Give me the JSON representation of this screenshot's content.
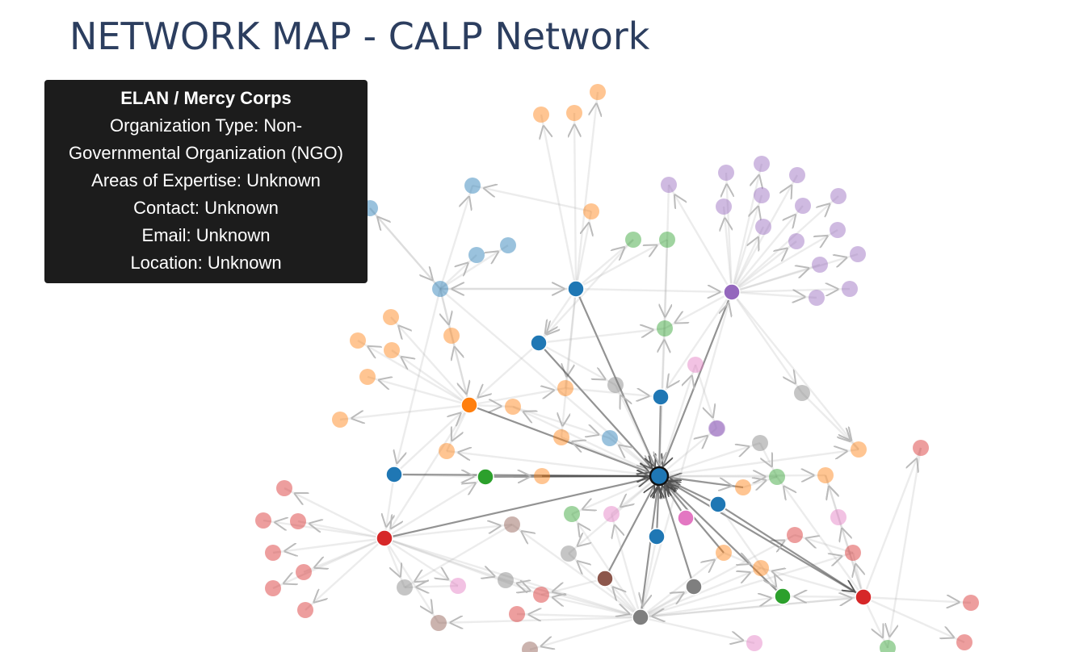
{
  "page": {
    "title": "NETWORK MAP - CALP Network"
  },
  "tooltip": {
    "title": "ELAN / Mercy Corps",
    "lines": [
      "Organization Type: Non-",
      "Governmental Organization (NGO)",
      "Areas of Expertise: Unknown",
      "Contact: Unknown",
      "Email: Unknown",
      "Location: Unknown"
    ]
  },
  "colors": {
    "blue": "#1f77b4",
    "orange": "#ff7f0e",
    "green": "#2ca02c",
    "red": "#d62728",
    "purple": "#9467bd",
    "brown": "#8c564b",
    "pink": "#e377c2",
    "gray": "#7f7f7f",
    "edge": "#999999",
    "highlight_edge": "#333333",
    "tooltip_bg": "#1c1c1c"
  },
  "graph": {
    "focus_node": "n0",
    "nodes": [
      {
        "id": "n0",
        "group": "blue",
        "strong": true,
        "focus": true
      },
      {
        "id": "n1",
        "group": "blue",
        "strong": true
      },
      {
        "id": "n2",
        "group": "blue",
        "strong": true
      },
      {
        "id": "n3",
        "group": "blue",
        "strong": true
      },
      {
        "id": "n4",
        "group": "blue",
        "strong": true
      },
      {
        "id": "n5",
        "group": "blue",
        "strong": true
      },
      {
        "id": "n6",
        "group": "blue",
        "strong": true
      },
      {
        "id": "n7",
        "group": "blue",
        "strong": false
      },
      {
        "id": "n8",
        "group": "blue",
        "strong": false
      },
      {
        "id": "n9",
        "group": "blue",
        "strong": false
      },
      {
        "id": "n10",
        "group": "blue",
        "strong": false
      },
      {
        "id": "n11",
        "group": "blue",
        "strong": false
      },
      {
        "id": "n12",
        "group": "blue",
        "strong": false
      },
      {
        "id": "n13",
        "group": "purple",
        "strong": true
      },
      {
        "id": "n14",
        "group": "purple",
        "strong": false
      },
      {
        "id": "n15",
        "group": "purple",
        "strong": false
      },
      {
        "id": "n16",
        "group": "purple",
        "strong": false
      },
      {
        "id": "n17",
        "group": "purple",
        "strong": false
      },
      {
        "id": "n18",
        "group": "purple",
        "strong": false
      },
      {
        "id": "n19",
        "group": "purple",
        "strong": false
      },
      {
        "id": "n20",
        "group": "purple",
        "strong": false
      },
      {
        "id": "n21",
        "group": "purple",
        "strong": false
      },
      {
        "id": "n22",
        "group": "purple",
        "strong": false
      },
      {
        "id": "n23",
        "group": "purple",
        "strong": false
      },
      {
        "id": "n24",
        "group": "purple",
        "strong": false
      },
      {
        "id": "n25",
        "group": "purple",
        "strong": false
      },
      {
        "id": "n26",
        "group": "purple",
        "strong": false
      },
      {
        "id": "n27",
        "group": "purple",
        "strong": false
      },
      {
        "id": "n28",
        "group": "purple",
        "strong": false
      },
      {
        "id": "n29",
        "group": "purple",
        "strong": false
      },
      {
        "id": "n30",
        "group": "purple",
        "strong": false
      },
      {
        "id": "n31",
        "group": "orange",
        "strong": true
      },
      {
        "id": "n32",
        "group": "orange",
        "strong": false
      },
      {
        "id": "n33",
        "group": "orange",
        "strong": false
      },
      {
        "id": "n34",
        "group": "orange",
        "strong": false
      },
      {
        "id": "n35",
        "group": "orange",
        "strong": false
      },
      {
        "id": "n36",
        "group": "orange",
        "strong": false
      },
      {
        "id": "n37",
        "group": "orange",
        "strong": false
      },
      {
        "id": "n38",
        "group": "orange",
        "strong": false
      },
      {
        "id": "n39",
        "group": "orange",
        "strong": false
      },
      {
        "id": "n40",
        "group": "orange",
        "strong": false
      },
      {
        "id": "n41",
        "group": "orange",
        "strong": false
      },
      {
        "id": "n42",
        "group": "orange",
        "strong": false
      },
      {
        "id": "n43",
        "group": "orange",
        "strong": false
      },
      {
        "id": "n44",
        "group": "orange",
        "strong": false
      },
      {
        "id": "n45",
        "group": "orange",
        "strong": false
      },
      {
        "id": "n46",
        "group": "orange",
        "strong": false
      },
      {
        "id": "n47",
        "group": "orange",
        "strong": false
      },
      {
        "id": "n48",
        "group": "orange",
        "strong": false
      },
      {
        "id": "n49",
        "group": "orange",
        "strong": false
      },
      {
        "id": "n50",
        "group": "orange",
        "strong": false
      },
      {
        "id": "n51",
        "group": "orange",
        "strong": false
      },
      {
        "id": "n52",
        "group": "green",
        "strong": true
      },
      {
        "id": "n53",
        "group": "green",
        "strong": true
      },
      {
        "id": "n54",
        "group": "green",
        "strong": false
      },
      {
        "id": "n55",
        "group": "green",
        "strong": false
      },
      {
        "id": "n56",
        "group": "green",
        "strong": false
      },
      {
        "id": "n57",
        "group": "green",
        "strong": false
      },
      {
        "id": "n58",
        "group": "green",
        "strong": false
      },
      {
        "id": "n59",
        "group": "green",
        "strong": false
      },
      {
        "id": "n60",
        "group": "red",
        "strong": true
      },
      {
        "id": "n61",
        "group": "red",
        "strong": true
      },
      {
        "id": "n62",
        "group": "red",
        "strong": false
      },
      {
        "id": "n63",
        "group": "red",
        "strong": false
      },
      {
        "id": "n64",
        "group": "red",
        "strong": false
      },
      {
        "id": "n65",
        "group": "red",
        "strong": false
      },
      {
        "id": "n66",
        "group": "red",
        "strong": false
      },
      {
        "id": "n67",
        "group": "red",
        "strong": false
      },
      {
        "id": "n68",
        "group": "red",
        "strong": false
      },
      {
        "id": "n69",
        "group": "red",
        "strong": false
      },
      {
        "id": "n70",
        "group": "red",
        "strong": false
      },
      {
        "id": "n71",
        "group": "red",
        "strong": false
      },
      {
        "id": "n72",
        "group": "red",
        "strong": false
      },
      {
        "id": "n73",
        "group": "red",
        "strong": false
      },
      {
        "id": "n74",
        "group": "red",
        "strong": false
      },
      {
        "id": "n75",
        "group": "red",
        "strong": false
      },
      {
        "id": "n76",
        "group": "pink",
        "strong": true
      },
      {
        "id": "n77",
        "group": "pink",
        "strong": false
      },
      {
        "id": "n78",
        "group": "pink",
        "strong": false
      },
      {
        "id": "n79",
        "group": "pink",
        "strong": false
      },
      {
        "id": "n80",
        "group": "pink",
        "strong": false
      },
      {
        "id": "n81",
        "group": "pink",
        "strong": false
      },
      {
        "id": "n82",
        "group": "brown",
        "strong": true
      },
      {
        "id": "n83",
        "group": "brown",
        "strong": false
      },
      {
        "id": "n84",
        "group": "brown",
        "strong": false
      },
      {
        "id": "n85",
        "group": "brown",
        "strong": false
      },
      {
        "id": "n86",
        "group": "gray",
        "strong": true
      },
      {
        "id": "n87",
        "group": "gray",
        "strong": true
      },
      {
        "id": "n88",
        "group": "gray",
        "strong": false
      },
      {
        "id": "n89",
        "group": "gray",
        "strong": false
      },
      {
        "id": "n90",
        "group": "gray",
        "strong": false
      },
      {
        "id": "n91",
        "group": "gray",
        "strong": false
      },
      {
        "id": "n92",
        "group": "gray",
        "strong": false
      },
      {
        "id": "n93",
        "group": "gray",
        "strong": false
      }
    ]
  }
}
